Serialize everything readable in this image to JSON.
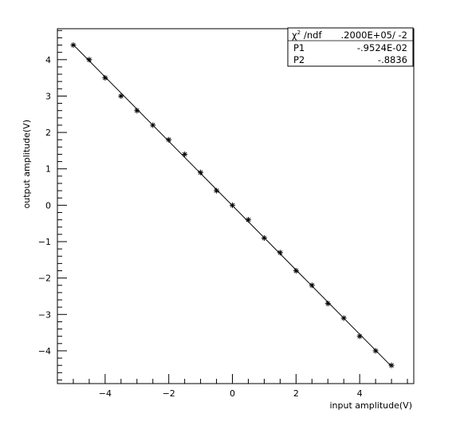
{
  "chart_data": {
    "type": "scatter",
    "xlabel": "input amplitude(V)",
    "ylabel": "output amplitude(V)",
    "xlim": [
      -5.5,
      5.7
    ],
    "ylim": [
      -4.9,
      4.85
    ],
    "x_ticks": [
      -4,
      -2,
      0,
      2,
      4
    ],
    "y_ticks": [
      -4,
      -3,
      -2,
      -1,
      0,
      1,
      2,
      3,
      4
    ],
    "x_tick_labels": [
      "−4",
      "−2",
      "0",
      "2",
      "4"
    ],
    "y_tick_labels": [
      "−4",
      "−3",
      "−2",
      "−1",
      "0",
      "1",
      "2",
      "3",
      "4"
    ],
    "grid": false,
    "marker": "asterisk",
    "series": [
      {
        "x": [
          -5,
          -4.5,
          -4,
          -3.5,
          -3,
          -2.5,
          -2,
          -1.5,
          -1,
          -0.5,
          0,
          0.5,
          1,
          1.5,
          2,
          2.5,
          3,
          3.5,
          4,
          4.5,
          5
        ],
        "y": [
          4.4,
          4.0,
          3.5,
          3.0,
          2.6,
          2.2,
          1.8,
          1.4,
          0.9,
          0.4,
          0.0,
          -0.4,
          -0.9,
          -1.3,
          -1.8,
          -2.2,
          -2.7,
          -3.1,
          -3.6,
          -4.0,
          -4.4
        ]
      }
    ],
    "fit": {
      "type": "linear",
      "intercept": -0.009524,
      "slope": -0.8836,
      "x_range": [
        -5,
        5
      ]
    }
  },
  "stats_box": {
    "row1_label": "/ndf",
    "row1_value": ".2000E+05/    -2",
    "row2_label": "P1",
    "row2_value": "-.9524E-02",
    "row3_label": "P2",
    "row3_value": "-.8836"
  }
}
